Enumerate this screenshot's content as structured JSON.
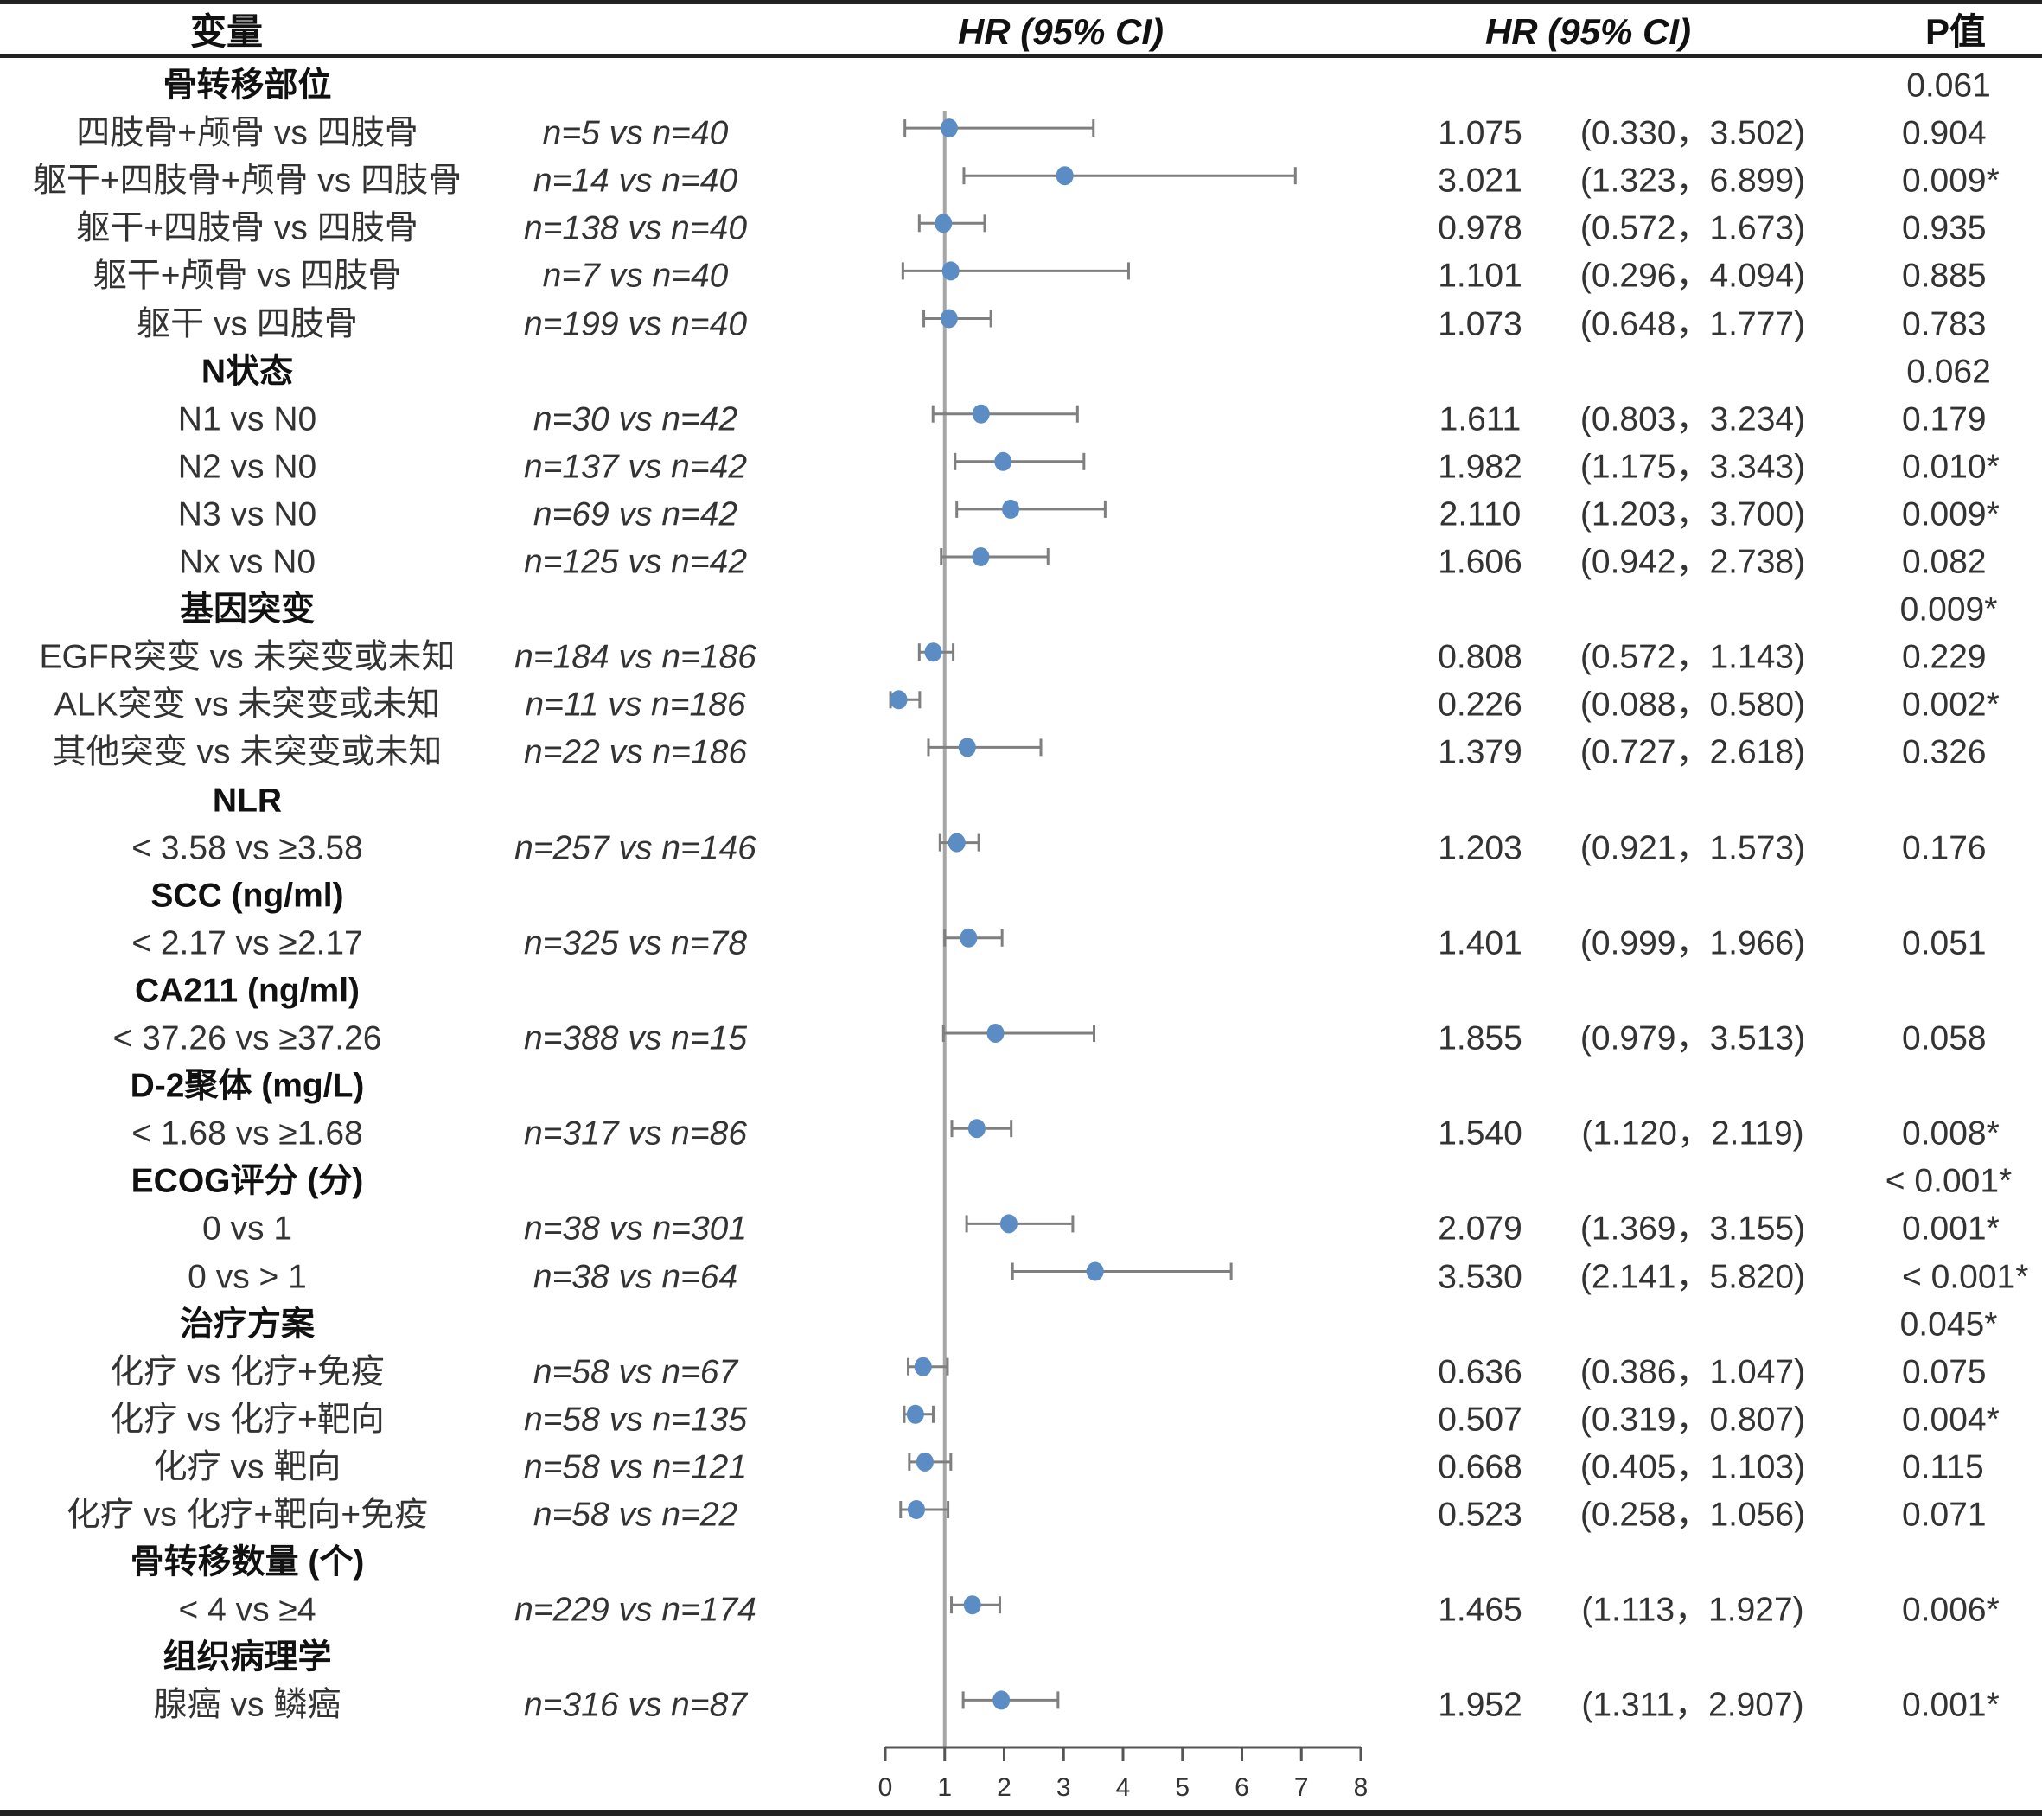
{
  "header": {
    "variable": "变量",
    "hr_plot": "HR (95% CI)",
    "hr_text": "HR (95% CI)",
    "p": "P值"
  },
  "colors": {
    "point": "#5b8cc4",
    "ci_line": "#7f7f7f",
    "ref_line": "#a6a6a6",
    "axis": "#555555"
  },
  "chart_data": {
    "type": "forest",
    "title": "",
    "xlabel": "",
    "xlim": [
      0,
      8
    ],
    "xticks": [
      "0",
      "1",
      "2",
      "3",
      "4",
      "5",
      "6",
      "7",
      "8"
    ],
    "reference_line": 1,
    "rows": [
      {
        "type": "group",
        "label": "骨转移部位",
        "p": "0.061"
      },
      {
        "type": "item",
        "label": "四肢骨+颅骨 vs 四肢骨",
        "n": "n=5 vs n=40",
        "hr": 1.075,
        "lo": 0.33,
        "hi": 3.502,
        "hr_text": "1.075",
        "ci_text": "(0.330，3.502)",
        "p": "0.904"
      },
      {
        "type": "item",
        "label": "躯干+四肢骨+颅骨 vs 四肢骨",
        "n": "n=14 vs n=40",
        "hr": 3.021,
        "lo": 1.323,
        "hi": 6.899,
        "hr_text": "3.021",
        "ci_text": "(1.323，6.899)",
        "p": "0.009*"
      },
      {
        "type": "item",
        "label": "躯干+四肢骨 vs 四肢骨",
        "n": "n=138 vs n=40",
        "hr": 0.978,
        "lo": 0.572,
        "hi": 1.673,
        "hr_text": "0.978",
        "ci_text": "(0.572，1.673)",
        "p": "0.935"
      },
      {
        "type": "item",
        "label": "躯干+颅骨 vs 四肢骨",
        "n": "n=7 vs n=40",
        "hr": 1.101,
        "lo": 0.296,
        "hi": 4.094,
        "hr_text": "1.101",
        "ci_text": "(0.296，4.094)",
        "p": "0.885"
      },
      {
        "type": "item",
        "label": "躯干 vs 四肢骨",
        "n": "n=199 vs n=40",
        "hr": 1.073,
        "lo": 0.648,
        "hi": 1.777,
        "hr_text": "1.073",
        "ci_text": "(0.648，1.777)",
        "p": "0.783"
      },
      {
        "type": "group",
        "label": "N状态",
        "p": "0.062"
      },
      {
        "type": "item",
        "label": "N1 vs N0",
        "n": "n=30 vs n=42",
        "hr": 1.611,
        "lo": 0.803,
        "hi": 3.234,
        "hr_text": "1.611",
        "ci_text": "(0.803，3.234)",
        "p": "0.179"
      },
      {
        "type": "item",
        "label": "N2 vs N0",
        "n": "n=137 vs n=42",
        "hr": 1.982,
        "lo": 1.175,
        "hi": 3.343,
        "hr_text": "1.982",
        "ci_text": "(1.175，3.343)",
        "p": "0.010*"
      },
      {
        "type": "item",
        "label": "N3 vs N0",
        "n": "n=69 vs n=42",
        "hr": 2.11,
        "lo": 1.203,
        "hi": 3.7,
        "hr_text": "2.110",
        "ci_text": "(1.203，3.700)",
        "p": "0.009*"
      },
      {
        "type": "item",
        "label": "Nx vs N0",
        "n": "n=125 vs n=42",
        "hr": 1.606,
        "lo": 0.942,
        "hi": 2.738,
        "hr_text": "1.606",
        "ci_text": "(0.942，2.738)",
        "p": "0.082"
      },
      {
        "type": "group",
        "label": "基因突变",
        "p": "0.009*"
      },
      {
        "type": "item",
        "label": "EGFR突变 vs 未突变或未知",
        "n": "n=184 vs n=186",
        "hr": 0.808,
        "lo": 0.572,
        "hi": 1.143,
        "hr_text": "0.808",
        "ci_text": "(0.572，1.143)",
        "p": "0.229"
      },
      {
        "type": "item",
        "label": "ALK突变 vs 未突变或未知",
        "n": "n=11 vs n=186",
        "hr": 0.226,
        "lo": 0.088,
        "hi": 0.58,
        "hr_text": "0.226",
        "ci_text": "(0.088，0.580)",
        "p": "0.002*"
      },
      {
        "type": "item",
        "label": "其他突变 vs 未突变或未知",
        "n": "n=22 vs n=186",
        "hr": 1.379,
        "lo": 0.727,
        "hi": 2.618,
        "hr_text": "1.379",
        "ci_text": "(0.727，2.618)",
        "p": "0.326"
      },
      {
        "type": "group",
        "label": "NLR",
        "p": ""
      },
      {
        "type": "item",
        "label": "< 3.58 vs ≥3.58",
        "n": "n=257 vs n=146",
        "hr": 1.203,
        "lo": 0.921,
        "hi": 1.573,
        "hr_text": "1.203",
        "ci_text": "(0.921，1.573)",
        "p": "0.176"
      },
      {
        "type": "group",
        "label": "SCC (ng/ml)",
        "p": ""
      },
      {
        "type": "item",
        "label": "< 2.17 vs ≥2.17",
        "n": "n=325 vs n=78",
        "hr": 1.401,
        "lo": 0.999,
        "hi": 1.966,
        "hr_text": "1.401",
        "ci_text": "(0.999，1.966)",
        "p": "0.051"
      },
      {
        "type": "group",
        "label": "CA211 (ng/ml)",
        "p": ""
      },
      {
        "type": "item",
        "label": "< 37.26 vs ≥37.26",
        "n": "n=388 vs n=15",
        "hr": 1.855,
        "lo": 0.979,
        "hi": 3.513,
        "hr_text": "1.855",
        "ci_text": "(0.979，3.513)",
        "p": "0.058"
      },
      {
        "type": "group",
        "label": "D-2聚体 (mg/L)",
        "p": ""
      },
      {
        "type": "item",
        "label": "< 1.68 vs ≥1.68",
        "n": "n=317 vs n=86",
        "hr": 1.54,
        "lo": 1.12,
        "hi": 2.119,
        "hr_text": "1.540",
        "ci_text": "(1.120，2.119)",
        "p": "0.008*"
      },
      {
        "type": "group",
        "label": "ECOG评分 (分)",
        "p": "< 0.001*"
      },
      {
        "type": "item",
        "label": "0 vs 1",
        "n": "n=38 vs n=301",
        "hr": 2.079,
        "lo": 1.369,
        "hi": 3.155,
        "hr_text": "2.079",
        "ci_text": "(1.369，3.155)",
        "p": "0.001*"
      },
      {
        "type": "item",
        "label": "0 vs > 1",
        "n": "n=38 vs n=64",
        "hr": 3.53,
        "lo": 2.141,
        "hi": 5.82,
        "hr_text": "3.530",
        "ci_text": "(2.141，5.820)",
        "p": "< 0.001*"
      },
      {
        "type": "group",
        "label": "治疗方案",
        "p": "0.045*"
      },
      {
        "type": "item",
        "label": "化疗 vs 化疗+免疫",
        "n": "n=58 vs n=67",
        "hr": 0.636,
        "lo": 0.386,
        "hi": 1.047,
        "hr_text": "0.636",
        "ci_text": "(0.386，1.047)",
        "p": "0.075"
      },
      {
        "type": "item",
        "label": "化疗 vs 化疗+靶向",
        "n": "n=58 vs n=135",
        "hr": 0.507,
        "lo": 0.319,
        "hi": 0.807,
        "hr_text": "0.507",
        "ci_text": "(0.319，0.807)",
        "p": "0.004*"
      },
      {
        "type": "item",
        "label": "化疗 vs 靶向",
        "n": "n=58 vs n=121",
        "hr": 0.668,
        "lo": 0.405,
        "hi": 1.103,
        "hr_text": "0.668",
        "ci_text": "(0.405，1.103)",
        "p": "0.115"
      },
      {
        "type": "item",
        "label": "化疗 vs 化疗+靶向+免疫",
        "n": "n=58 vs n=22",
        "hr": 0.523,
        "lo": 0.258,
        "hi": 1.056,
        "hr_text": "0.523",
        "ci_text": "(0.258，1.056)",
        "p": "0.071"
      },
      {
        "type": "group",
        "label": "骨转移数量 (个)",
        "p": ""
      },
      {
        "type": "item",
        "label": "< 4 vs ≥4",
        "n": "n=229 vs n=174",
        "hr": 1.465,
        "lo": 1.113,
        "hi": 1.927,
        "hr_text": "1.465",
        "ci_text": "(1.113，1.927)",
        "p": "0.006*"
      },
      {
        "type": "group",
        "label": "组织病理学",
        "p": ""
      },
      {
        "type": "item",
        "label": "腺癌 vs 鳞癌",
        "n": "n=316 vs n=87",
        "hr": 1.952,
        "lo": 1.311,
        "hi": 2.907,
        "hr_text": "1.952",
        "ci_text": "(1.311，2.907)",
        "p": "0.001*"
      }
    ]
  }
}
